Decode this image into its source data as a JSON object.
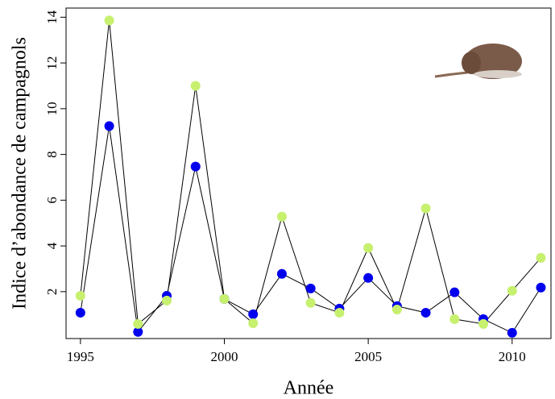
{
  "chart_data": {
    "type": "line",
    "x": [
      1995,
      1996,
      1997,
      1998,
      1999,
      2000,
      2001,
      2002,
      2003,
      2004,
      2005,
      2006,
      2007,
      2008,
      2009,
      2010,
      2011
    ],
    "series": [
      {
        "color": "#0000ee",
        "values": [
          1.08,
          9.24,
          0.24,
          1.82,
          7.47,
          1.68,
          1.01,
          2.78,
          2.14,
          1.26,
          2.6,
          1.37,
          1.08,
          1.97,
          0.8,
          0.2,
          2.18
        ]
      },
      {
        "color": "#c6f06e",
        "values": [
          1.82,
          13.86,
          0.59,
          1.61,
          11.0,
          1.68,
          0.62,
          5.28,
          1.51,
          1.08,
          3.91,
          1.22,
          5.64,
          0.8,
          0.59,
          2.04,
          3.48
        ]
      }
    ],
    "line_color": "#000000",
    "xlabel": "Année",
    "ylabel": "Indice d’abondance de campagnols",
    "xlim": [
      1994.5,
      2011.35
    ],
    "ylim": [
      -0.05,
      14.4
    ],
    "xticks": [
      1995,
      2000,
      2005,
      2010
    ],
    "yticks": [
      2,
      4,
      6,
      8,
      10,
      12,
      14
    ]
  }
}
